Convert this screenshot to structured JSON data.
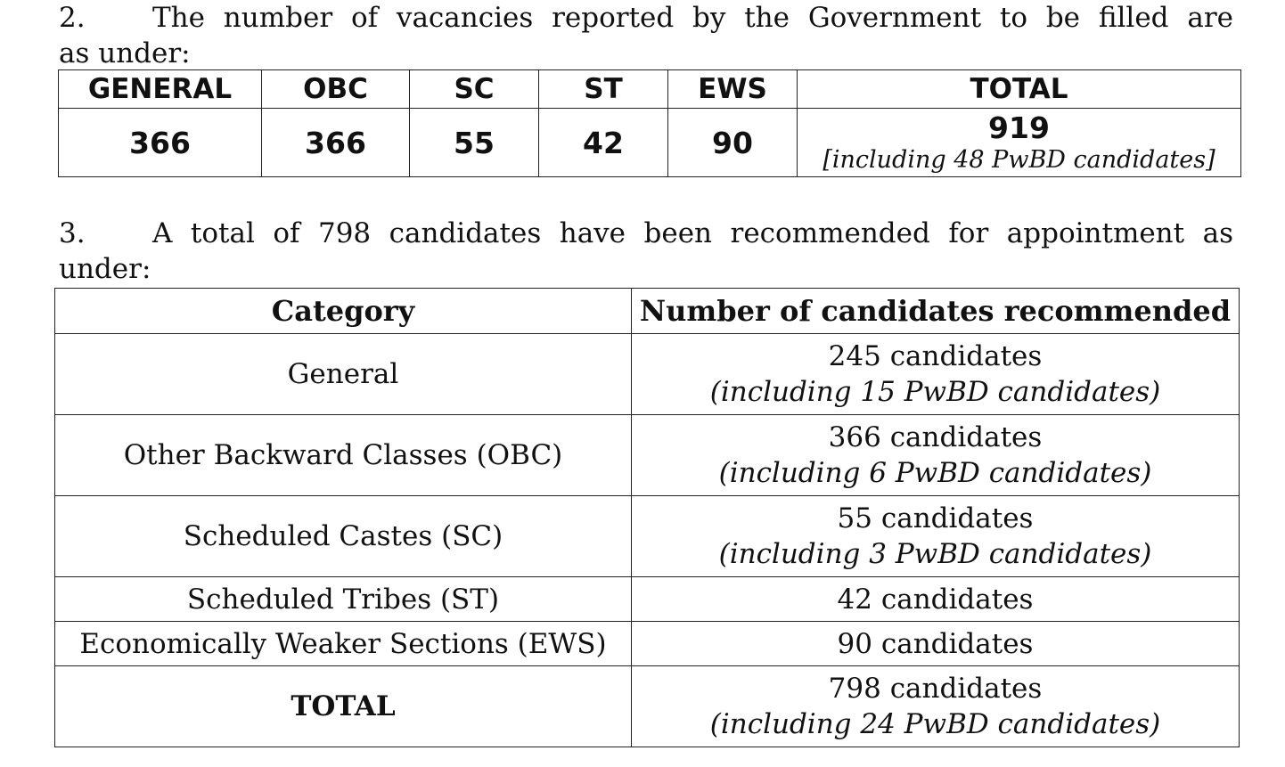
{
  "para2": {
    "number": "2.",
    "line1": "The number of vacancies reported by the Government to be filled are",
    "line2": "as under:"
  },
  "vacancies_table": {
    "headers": [
      "GENERAL",
      "OBC",
      "SC",
      "ST",
      "EWS",
      "TOTAL"
    ],
    "values": [
      "366",
      "366",
      "55",
      "42",
      "90"
    ],
    "total": "919",
    "total_note": "[including 48 PwBD candidates]"
  },
  "para3": {
    "number": "3.",
    "line1": "A total of 798 candidates have been recommended for appointment as",
    "line2": "under:"
  },
  "recommended_table": {
    "headers": [
      "Category",
      "Number of candidates recommended"
    ],
    "rows": [
      {
        "category": "General",
        "count": "245 candidates",
        "note": "(including 15 PwBD candidates)"
      },
      {
        "category": "Other Backward Classes (OBC)",
        "count": "366 candidates",
        "note": "(including 6 PwBD candidates)"
      },
      {
        "category": "Scheduled Castes (SC)",
        "count": "55 candidates",
        "note": "(including 3 PwBD candidates)"
      },
      {
        "category": "Scheduled Tribes (ST)",
        "count": "42 candidates",
        "note": ""
      },
      {
        "category": "Economically Weaker Sections (EWS)",
        "count": "90 candidates",
        "note": ""
      },
      {
        "category": "TOTAL",
        "count": "798 candidates",
        "note": "(including 24 PwBD candidates)"
      }
    ]
  }
}
